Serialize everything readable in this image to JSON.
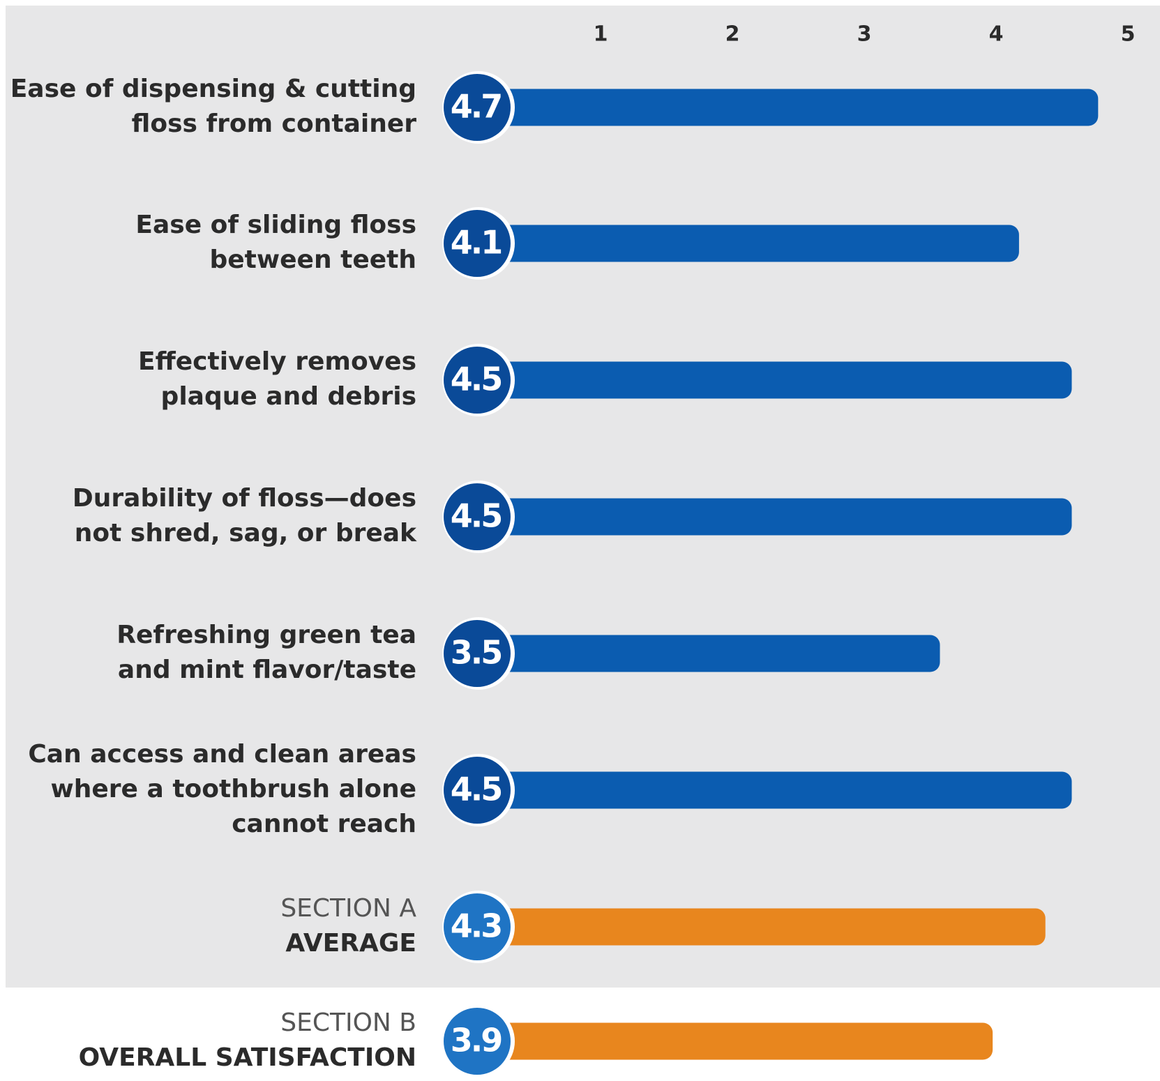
{
  "chart_data": {
    "type": "bar",
    "orientation": "horizontal",
    "categories": [
      [
        "Ease of dispensing & cutting",
        "floss from container"
      ],
      [
        "Ease of sliding floss",
        "between teeth"
      ],
      [
        "Effectively removes",
        "plaque and debris"
      ],
      [
        "Durability of floss—does",
        "not shred, sag, or break"
      ],
      [
        "Refreshing green tea",
        "and mint flavor/taste"
      ],
      [
        "Can access and clean areas",
        "where a toothbrush alone",
        "cannot reach"
      ],
      [
        "SECTION A",
        "AVERAGE"
      ],
      [
        "SECTION B",
        "OVERALL SATISFACTION"
      ]
    ],
    "values": [
      4.7,
      4.1,
      4.5,
      4.5,
      3.5,
      4.5,
      4.3,
      3.9
    ],
    "colors": [
      "#0b5cb0",
      "#0b5cb0",
      "#0b5cb0",
      "#0b5cb0",
      "#0b5cb0",
      "#0b5cb0",
      "#e8861e",
      "#e8861e"
    ],
    "circle_colors": [
      "#0a4a98",
      "#0a4a98",
      "#0a4a98",
      "#0a4a98",
      "#0a4a98",
      "#0a4a98",
      "#1f74c4",
      "#1f74c4"
    ],
    "xlim": [
      0,
      5
    ],
    "xticks": [
      1,
      2,
      3,
      4,
      5
    ]
  }
}
